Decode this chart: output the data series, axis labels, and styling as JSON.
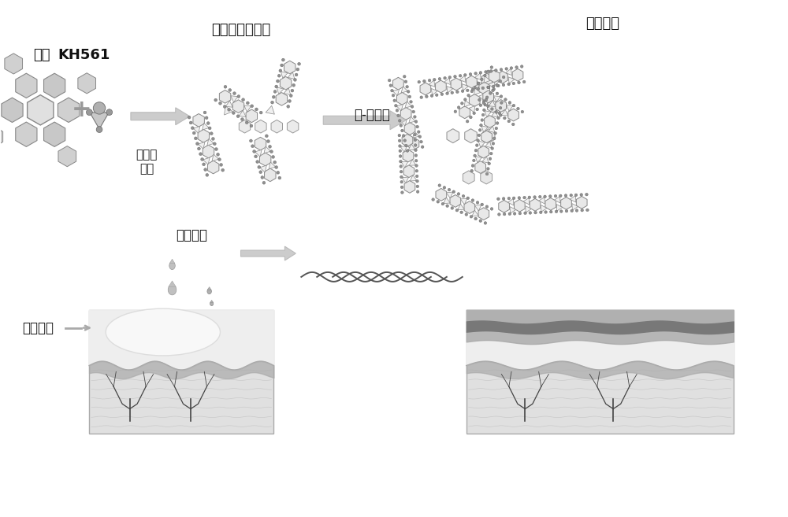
{
  "bg_color": "#ffffff",
  "labels": {
    "tannin": "单宁",
    "kh561": "KH561",
    "alkaline": "碱性水\n溶液",
    "liquid_glue": "液态低聚物胶水",
    "liquid_solid": "液-固转变",
    "solid_film": "固态成膜",
    "ethanol": "乙醇挥发",
    "skin_tissue": "皮肤组织"
  },
  "figsize": [
    10.0,
    6.57
  ],
  "dpi": 100
}
